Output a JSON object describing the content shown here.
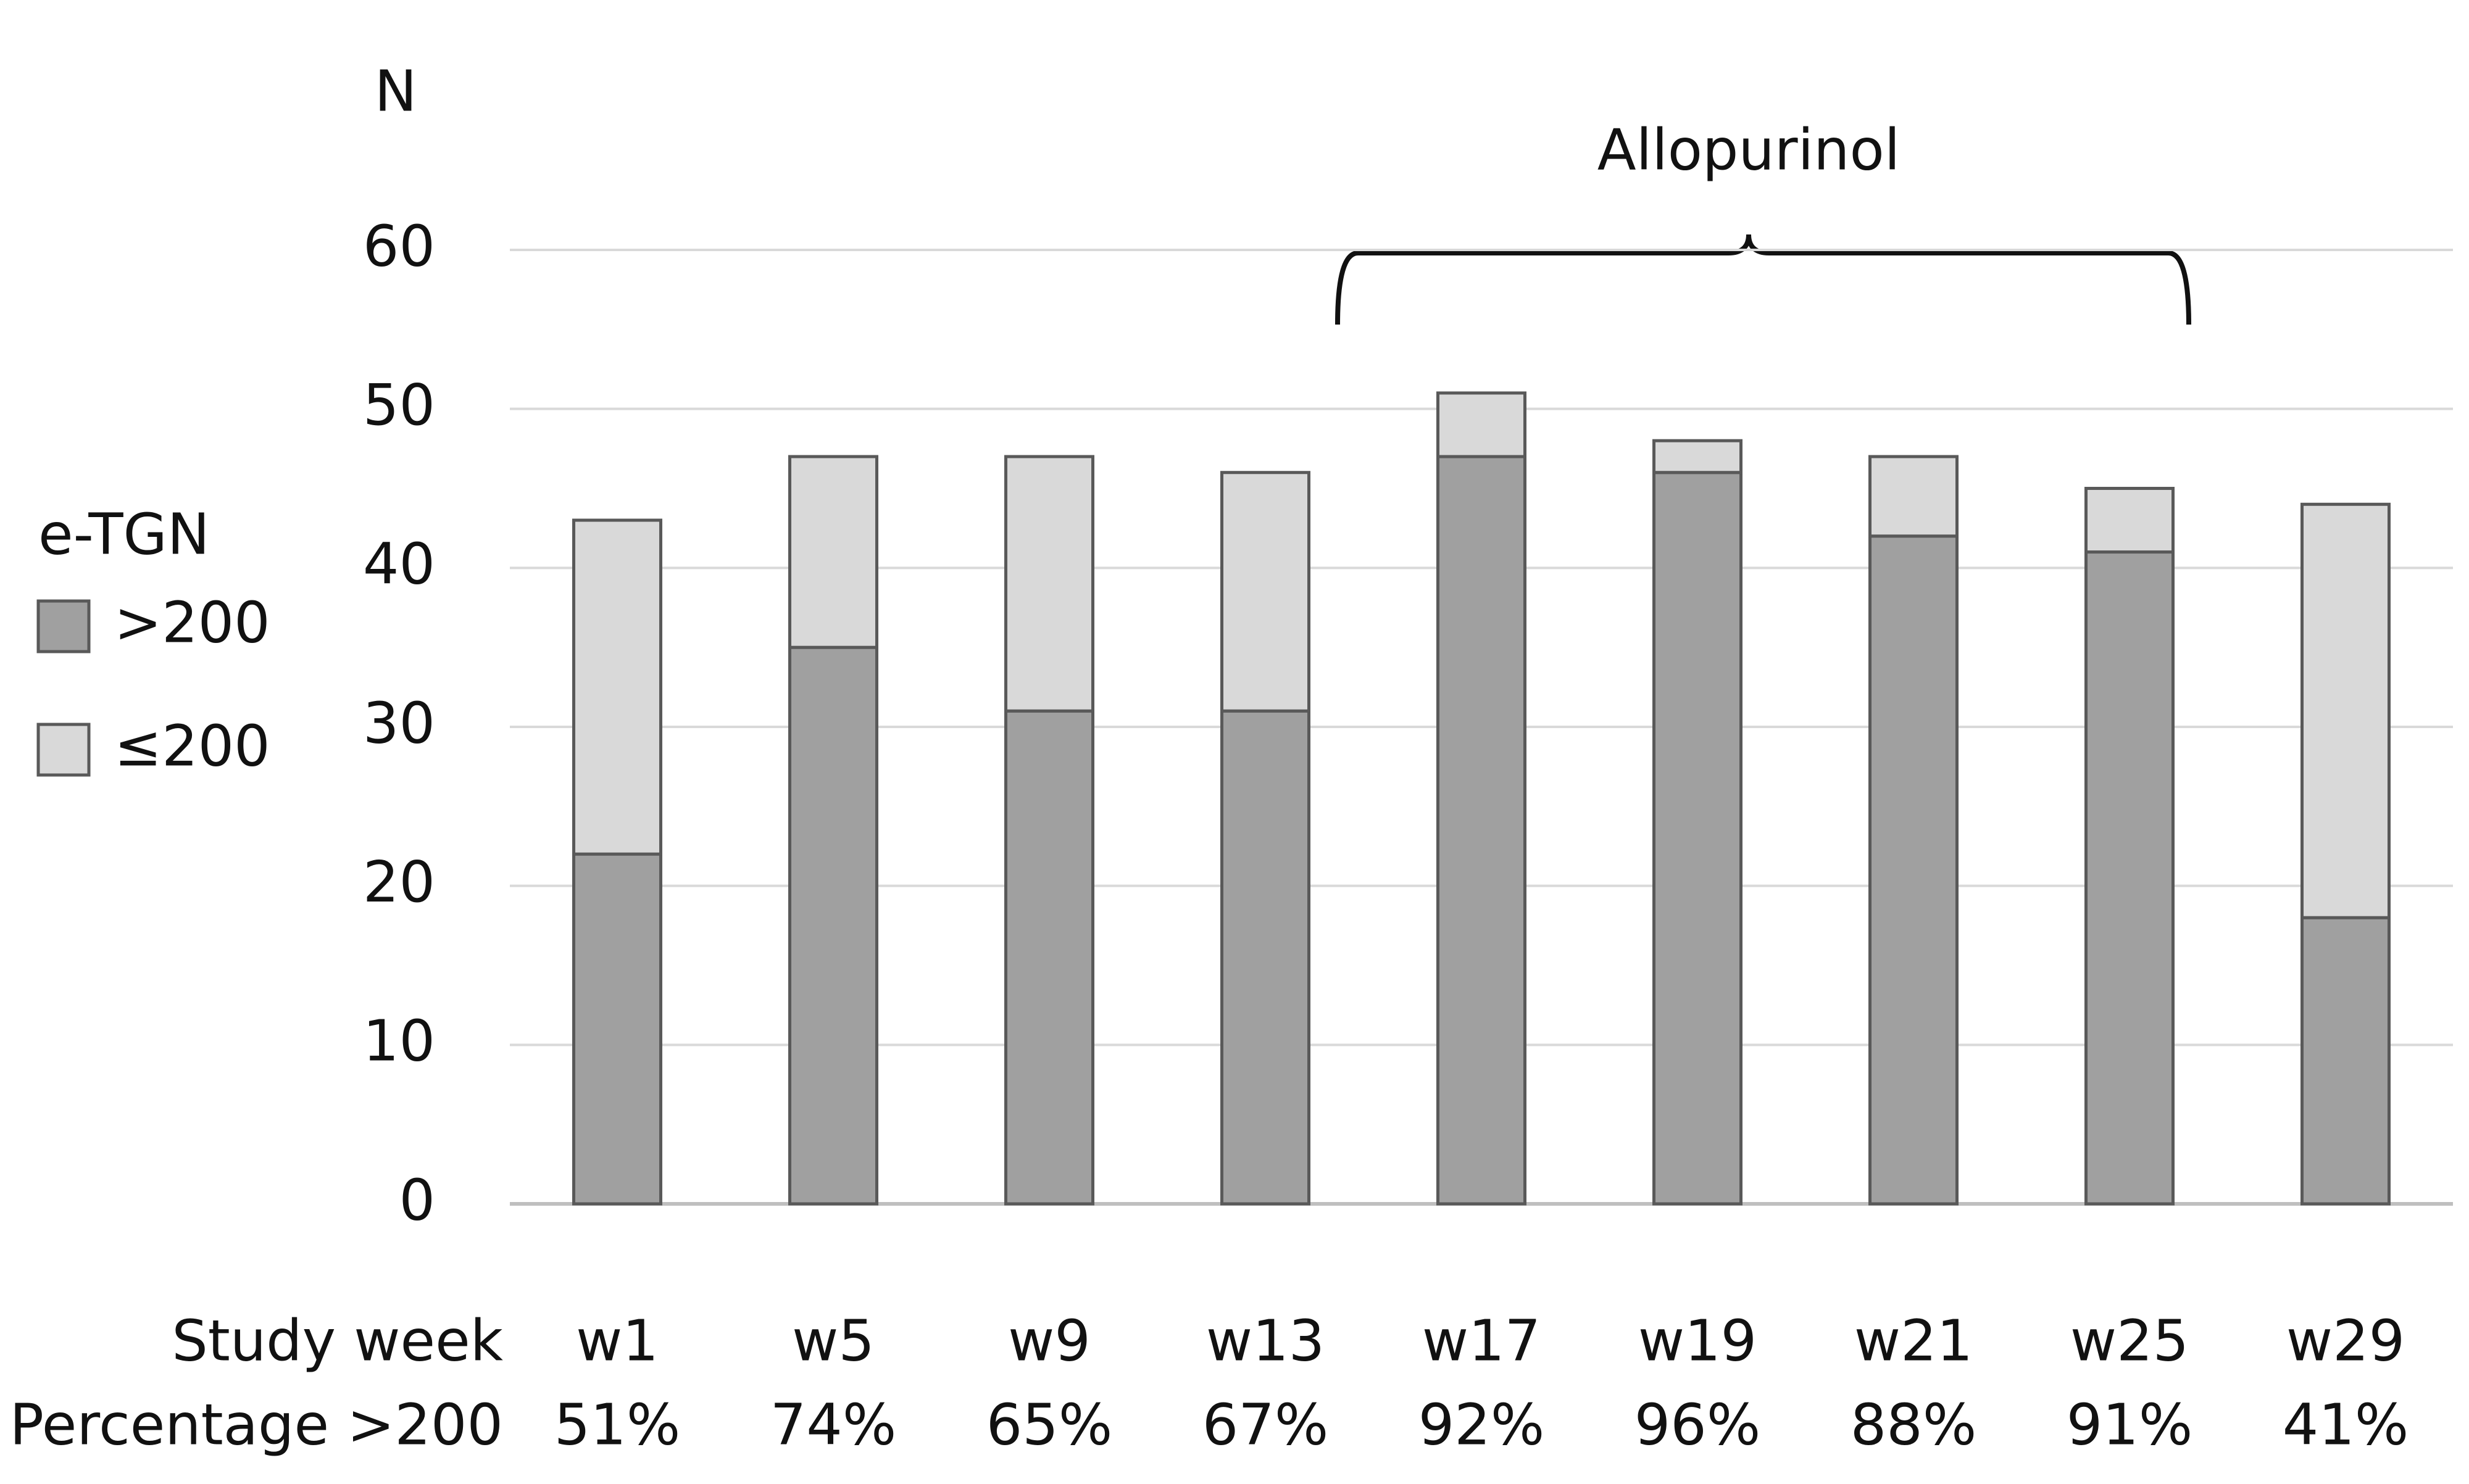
{
  "chart_data": {
    "type": "bar",
    "stacked": true,
    "y_axis_label": "N",
    "annotation": "Allopurinol",
    "legend_title": "e-TGN",
    "categories": [
      "w1",
      "w5",
      "w9",
      "w13",
      "w17",
      "w19",
      "w21",
      "w25",
      "w29"
    ],
    "series": [
      {
        "name": ">200",
        "color": "#a0a0a0",
        "values": [
          22,
          35,
          31,
          31,
          47,
          46,
          42,
          41,
          18
        ]
      },
      {
        "name": "≤200",
        "color": "#d9d9d9",
        "values": [
          21,
          12,
          16,
          15,
          4,
          2,
          5,
          4,
          26
        ]
      }
    ],
    "row_labels": [
      "Study week",
      "Percentage >200"
    ],
    "percentages": [
      "51%",
      "74%",
      "65%",
      "67%",
      "92%",
      "96%",
      "88%",
      "91%",
      "41%"
    ],
    "ylim": [
      0,
      60
    ],
    "yticks": [
      0,
      10,
      20,
      30,
      40,
      50,
      60
    ],
    "grid": true
  }
}
